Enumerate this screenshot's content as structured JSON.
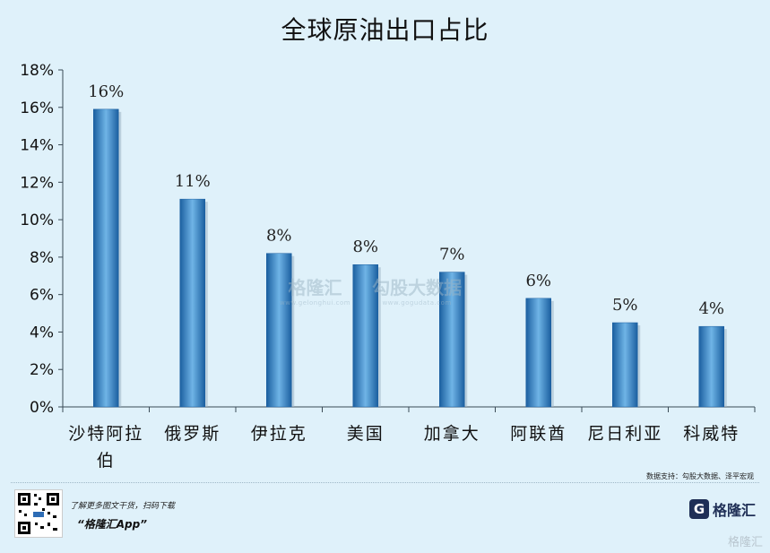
{
  "chart_data": {
    "type": "bar",
    "title": "全球原油出口占比",
    "categories": [
      "沙特阿拉伯",
      "俄罗斯",
      "伊拉克",
      "美国",
      "加拿大",
      "阿联酋",
      "尼日利亚",
      "科威特"
    ],
    "category_lines": [
      [
        "沙特阿拉",
        "伯"
      ],
      [
        "俄罗斯"
      ],
      [
        "伊拉克"
      ],
      [
        "美国"
      ],
      [
        "加拿大"
      ],
      [
        "阿联酋"
      ],
      [
        "尼日利亚"
      ],
      [
        "科威特"
      ]
    ],
    "values": [
      15.9,
      11.1,
      8.2,
      7.6,
      7.2,
      5.8,
      4.5,
      4.3
    ],
    "data_labels": [
      "16%",
      "11%",
      "8%",
      "8%",
      "7%",
      "6%",
      "5%",
      "4%"
    ],
    "yticks": [
      "0%",
      "2%",
      "4%",
      "6%",
      "8%",
      "10%",
      "12%",
      "14%",
      "16%",
      "18%"
    ],
    "ylim": [
      0,
      18
    ],
    "xlabel": "",
    "ylabel": "",
    "grid": false,
    "bar_color": "#2e7fc0"
  },
  "source_note": "数据支持：勾股大数据、泽平宏观",
  "footer": {
    "promo_text": "了解更多图文干货，扫码下载",
    "promo_app": "“格隆汇App”",
    "brand_mark": "G",
    "brand_name": "格隆汇",
    "corner_watermark": "格隆汇"
  },
  "watermark": {
    "left_main": "格隆汇",
    "left_sub": "www.gelonghui.com",
    "right_main": "勾股大数据",
    "right_sub": "www.gogudata.com"
  }
}
